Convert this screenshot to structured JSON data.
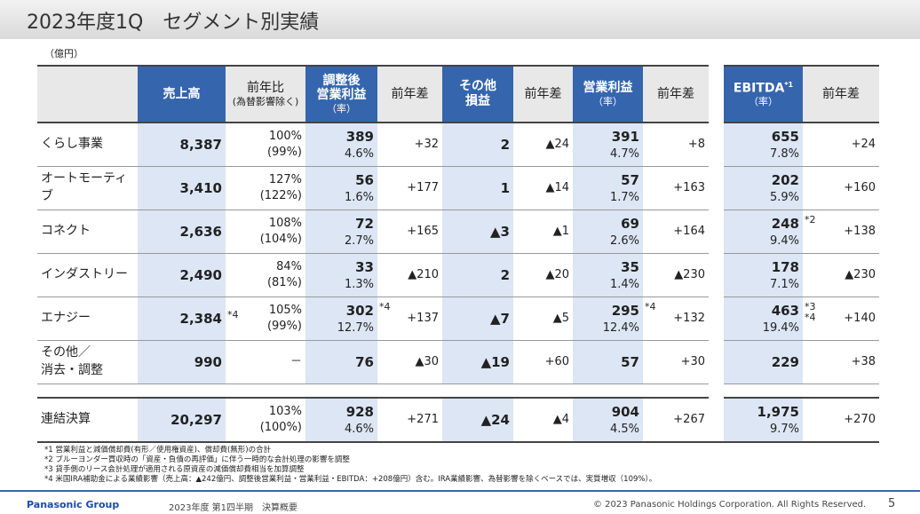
{
  "title": "2023年度1Q　セグメント別実績",
  "unit": "（億円）",
  "headers": {
    "sales": "売上高",
    "yoy": "前年比",
    "yoy_sub": "(為替影響除く)",
    "adj_op": "調整後\n営業利益",
    "rate": "（率）",
    "diff": "前年差",
    "other": "その他\n損益",
    "op": "営業利益",
    "ebitda": "EBITDA",
    "ebitda_note": "*1"
  },
  "rows": [
    {
      "label": "くらし事業",
      "sales": "8,387",
      "sales_note": "",
      "yoy": "100%",
      "yoy_fx": "(99%)",
      "adj_op": "389",
      "adj_op_rate": "4.6%",
      "adj_op_note": "",
      "adj_op_diff": "+32",
      "other": "2",
      "other_diff": "▲24",
      "op": "391",
      "op_rate": "4.7%",
      "op_note": "",
      "op_diff": "+8",
      "ebitda": "655",
      "ebitda_rate": "7.8%",
      "ebitda_note": "",
      "ebitda_diff": "+24"
    },
    {
      "label": "オートモーティブ",
      "sales": "3,410",
      "sales_note": "",
      "yoy": "127%",
      "yoy_fx": "(122%)",
      "adj_op": "56",
      "adj_op_rate": "1.6%",
      "adj_op_note": "",
      "adj_op_diff": "+177",
      "other": "1",
      "other_diff": "▲14",
      "op": "57",
      "op_rate": "1.7%",
      "op_note": "",
      "op_diff": "+163",
      "ebitda": "202",
      "ebitda_rate": "5.9%",
      "ebitda_note": "",
      "ebitda_diff": "+160"
    },
    {
      "label": "コネクト",
      "sales": "2,636",
      "sales_note": "",
      "yoy": "108%",
      "yoy_fx": "(104%)",
      "adj_op": "72",
      "adj_op_rate": "2.7%",
      "adj_op_note": "",
      "adj_op_diff": "+165",
      "other": "▲3",
      "other_diff": "▲1",
      "op": "69",
      "op_rate": "2.6%",
      "op_note": "",
      "op_diff": "+164",
      "ebitda": "248",
      "ebitda_rate": "9.4%",
      "ebitda_note": "*2",
      "ebitda_diff": "+138"
    },
    {
      "label": "インダストリー",
      "sales": "2,490",
      "sales_note": "",
      "yoy": "84%",
      "yoy_fx": "(81%)",
      "adj_op": "33",
      "adj_op_rate": "1.3%",
      "adj_op_note": "",
      "adj_op_diff": "▲210",
      "other": "2",
      "other_diff": "▲20",
      "op": "35",
      "op_rate": "1.4%",
      "op_note": "",
      "op_diff": "▲230",
      "ebitda": "178",
      "ebitda_rate": "7.1%",
      "ebitda_note": "",
      "ebitda_diff": "▲230"
    },
    {
      "label": "エナジー",
      "sales": "2,384",
      "sales_note": "*4",
      "yoy": "105%",
      "yoy_fx": "(99%)",
      "adj_op": "302",
      "adj_op_rate": "12.7%",
      "adj_op_note": "*4",
      "adj_op_diff": "+137",
      "other": "▲7",
      "other_diff": "▲5",
      "op": "295",
      "op_rate": "12.4%",
      "op_note": "*4",
      "op_diff": "+132",
      "ebitda": "463",
      "ebitda_rate": "19.4%",
      "ebitda_note": "*3 *4",
      "ebitda_diff": "+140"
    },
    {
      "label": "その他／\n消去・調整",
      "sales": "990",
      "sales_note": "",
      "yoy": "－",
      "yoy_fx": "",
      "adj_op": "76",
      "adj_op_rate": "",
      "adj_op_note": "",
      "adj_op_diff": "▲30",
      "other": "▲19",
      "other_diff": "+60",
      "op": "57",
      "op_rate": "",
      "op_note": "",
      "op_diff": "+30",
      "ebitda": "229",
      "ebitda_rate": "",
      "ebitda_note": "",
      "ebitda_diff": "+38"
    }
  ],
  "total": {
    "label": "連結決算",
    "sales": "20,297",
    "sales_note": "",
    "yoy": "103%",
    "yoy_fx": "(100%)",
    "adj_op": "928",
    "adj_op_rate": "4.6%",
    "adj_op_note": "",
    "adj_op_diff": "+271",
    "other": "▲24",
    "other_diff": "▲4",
    "op": "904",
    "op_rate": "4.5%",
    "op_note": "",
    "op_diff": "+267",
    "ebitda": "1,975",
    "ebitda_rate": "9.7%",
    "ebitda_note": "",
    "ebitda_diff": "+270"
  },
  "notes": [
    "*1  営業利益と減価償却費(有形／使用権資産)、償却費(無形)の合計",
    "*2  ブルーヨンダー買収時の「資産・負債の再評価」に伴う一時的な会計処理の影響を調整",
    "*3  貸手側のリース会計処理が適用される原資産の減価償却費相当を加算調整",
    "*4  米国IRA補助金による業績影響（売上高：▲242億円、調整後営業利益・営業利益・EBITDA：+208億円）含む。IRA業績影響、為替影響を除くベースでは、実質増収（109%）。"
  ],
  "footer": {
    "brand": "Panasonic Group",
    "doc": "2023年度 第1四半期　決算概要",
    "copyright": "© 2023 Panasonic Holdings Corporation. All Rights Reserved.",
    "page": "5"
  },
  "colors": {
    "header_blue": "#3565ad",
    "body_blue": "#dce6f4",
    "header_gray": "#e8e8e8"
  }
}
